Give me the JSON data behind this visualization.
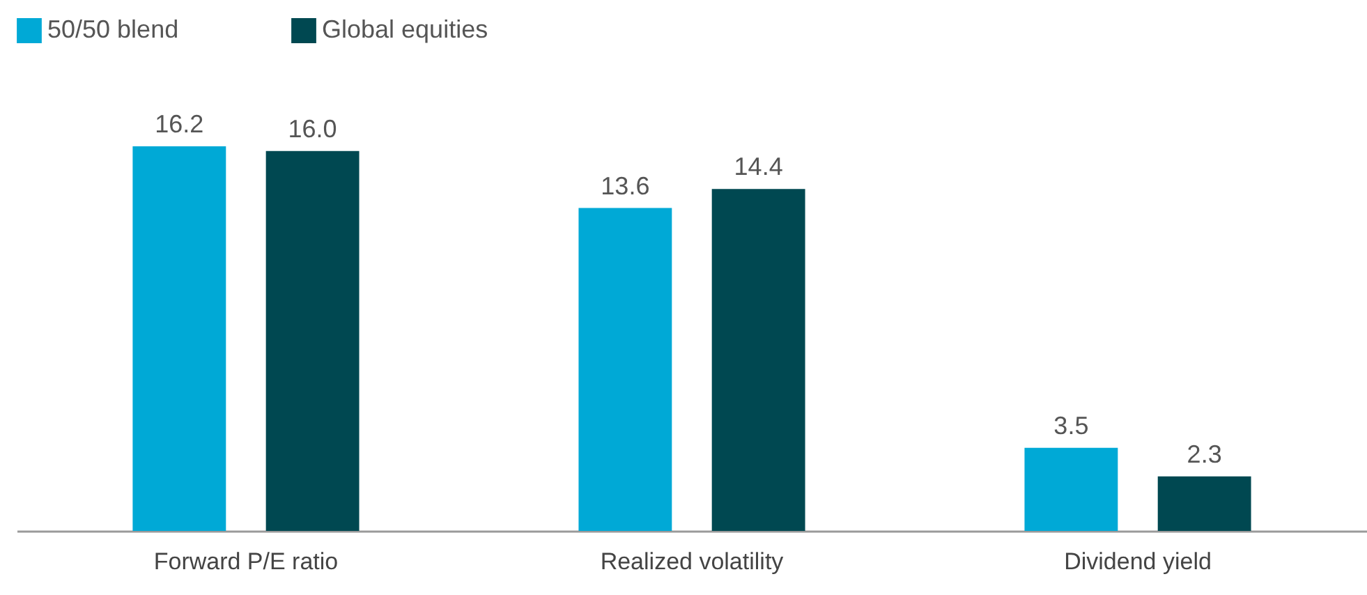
{
  "chart_data": {
    "type": "bar",
    "categories": [
      "Forward P/E ratio",
      "Realized volatility",
      "Dividend yield"
    ],
    "series": [
      {
        "name": "50/50 blend",
        "color": "#00a9d6",
        "values": [
          16.2,
          13.6,
          3.5
        ],
        "value_labels": [
          "16.2",
          "13.6",
          "3.5"
        ]
      },
      {
        "name": "Global equities",
        "color": "#004851",
        "values": [
          16.0,
          14.4,
          2.3
        ],
        "value_labels": [
          "16.0",
          "14.4",
          "2.3"
        ]
      }
    ],
    "legend": "top left",
    "grid": false,
    "tick_labels": "x"
  }
}
